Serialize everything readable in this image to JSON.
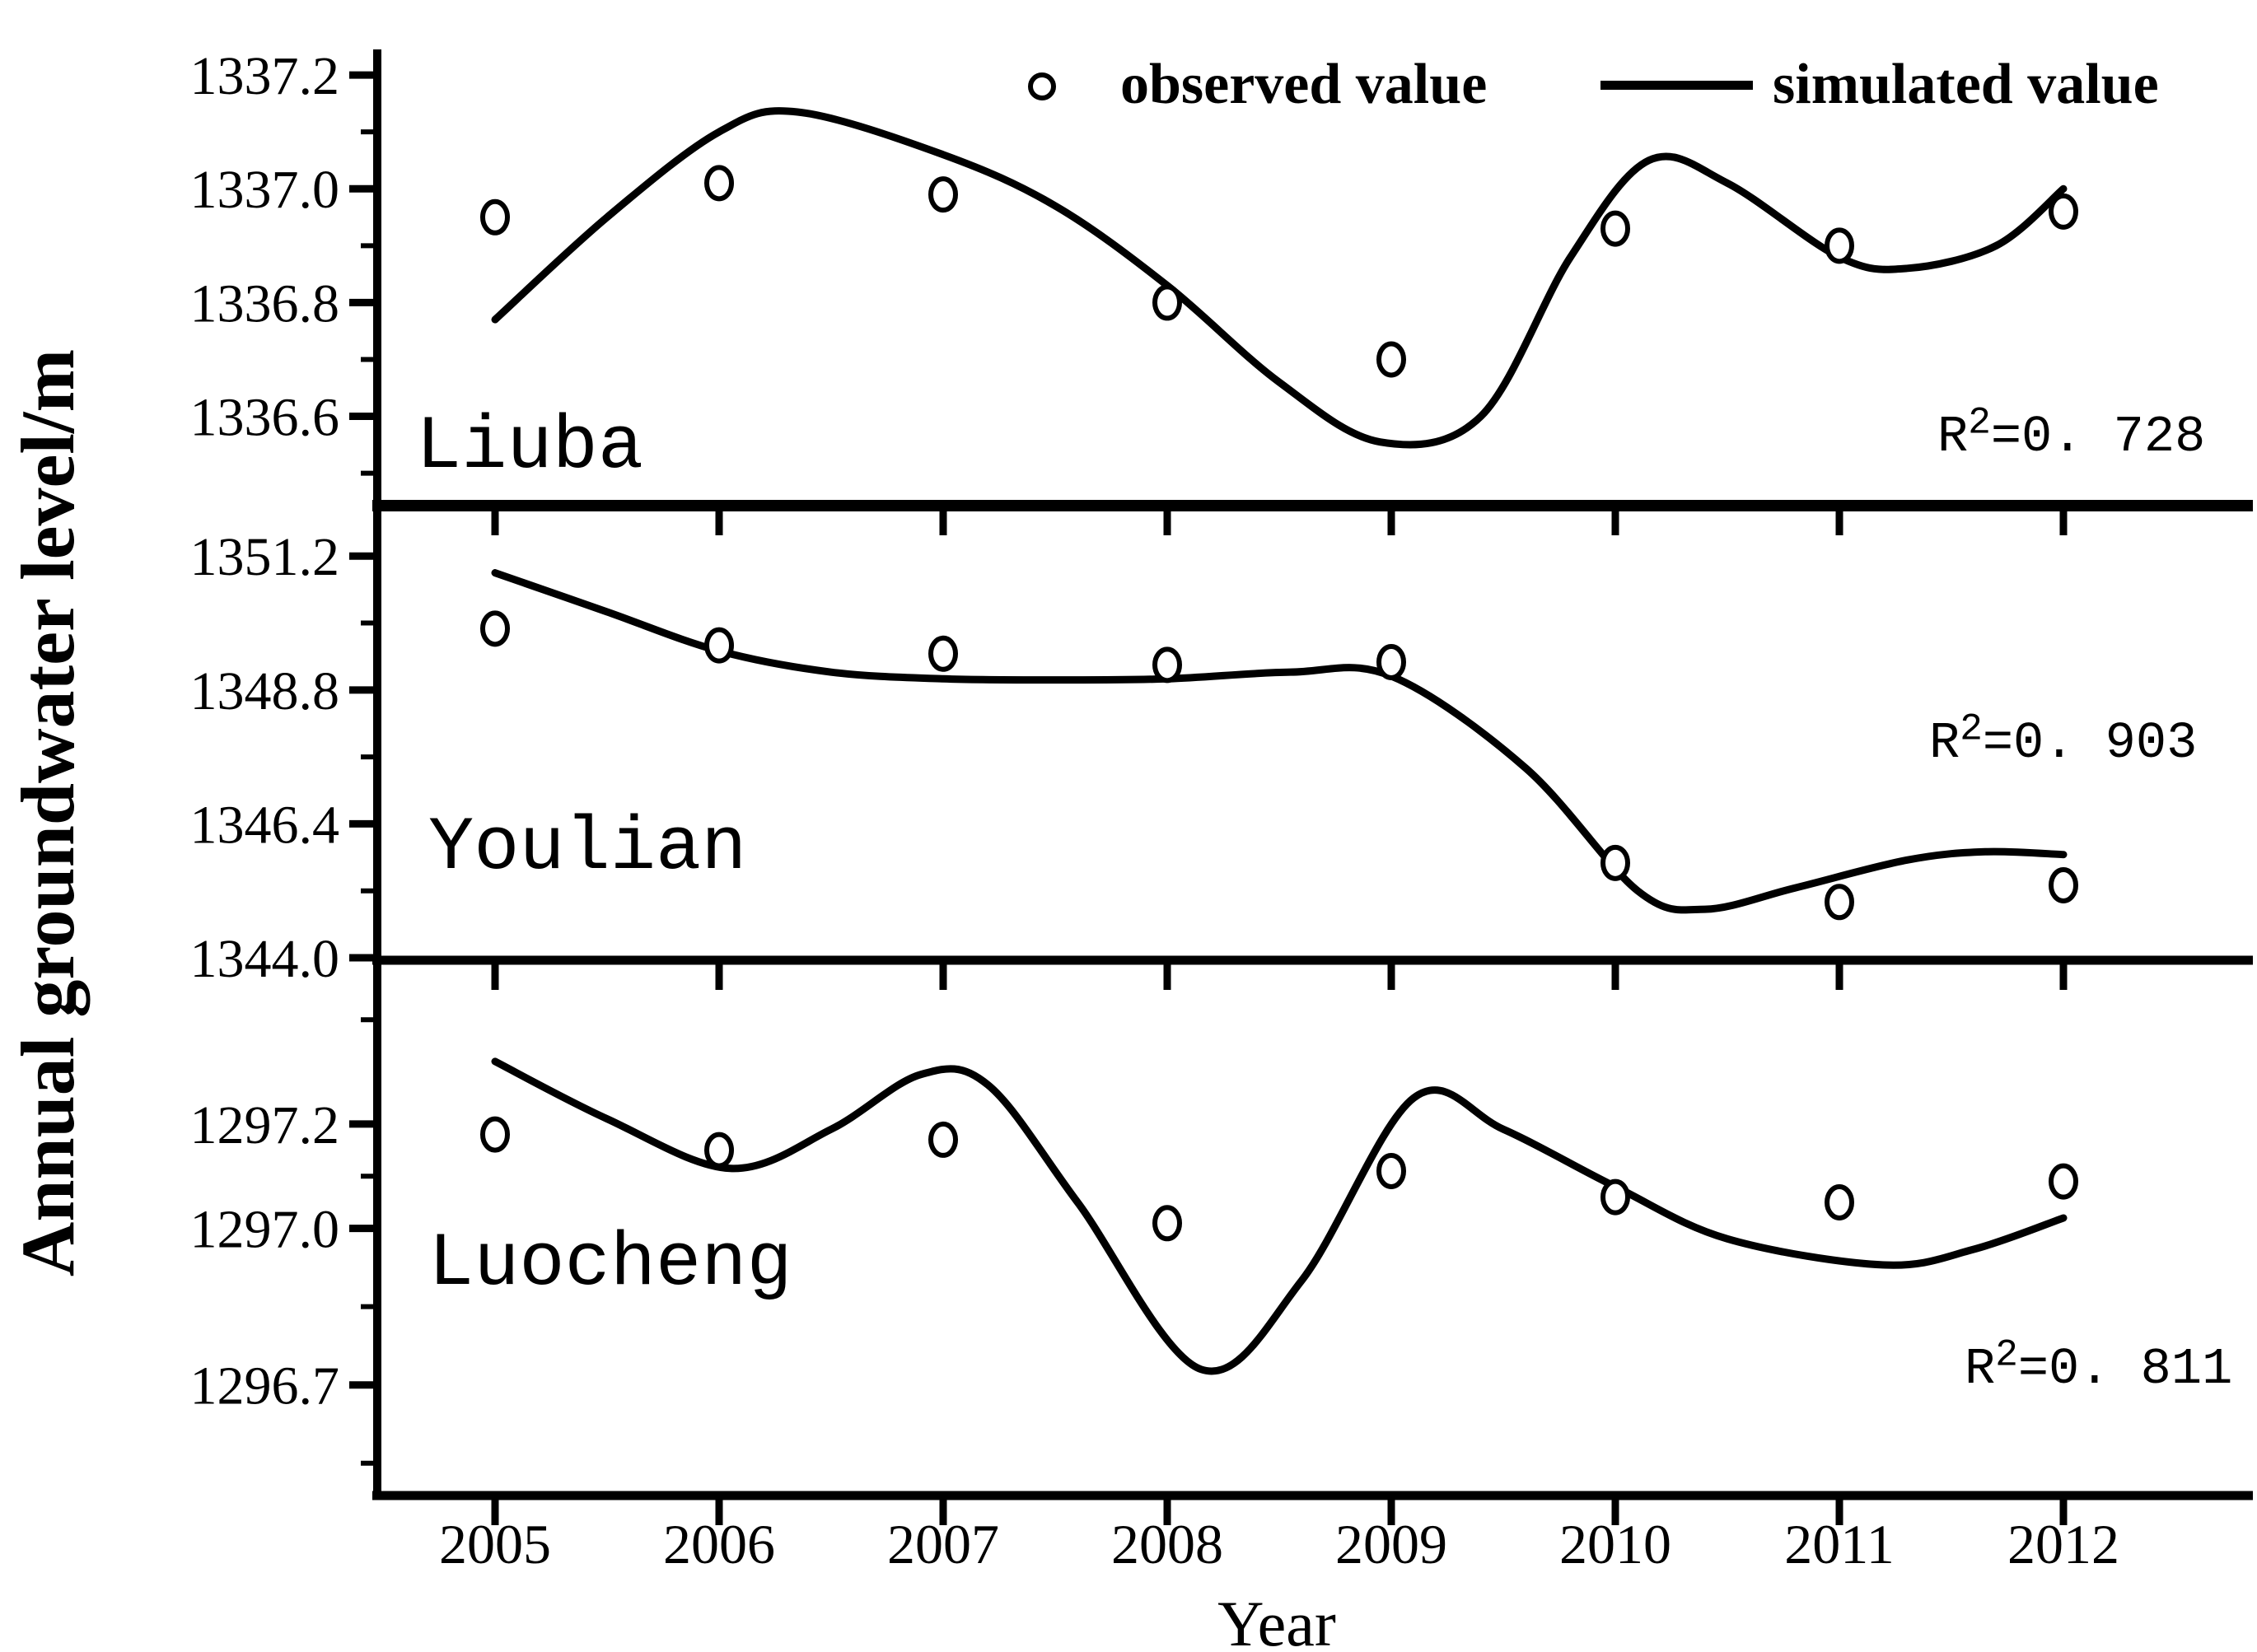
{
  "chart_data": {
    "type": "line",
    "title": "",
    "xlabel": "Year",
    "ylabel": "Annual groundwater level/m",
    "x_years": [
      2005,
      2006,
      2007,
      2008,
      2009,
      2010,
      2011,
      2012
    ],
    "legend": [
      {
        "label": "observed value",
        "marker": "circle"
      },
      {
        "label": "simulated value",
        "marker": "line"
      }
    ],
    "grid": false,
    "legend_position": "top",
    "panels": [
      {
        "name": "Liuba",
        "r2_base": "R",
        "r2_sup": "2",
        "r2_rest": "=0. 728",
        "ylim": [
          1336.443,
          1337.245
        ],
        "ytick_labels": [
          "1337.2",
          "1337.0",
          "1336.8",
          "1336.6"
        ],
        "yticks_major": [
          1337.2,
          1337.0,
          1336.8,
          1336.6
        ],
        "yticks_minor": [
          1337.1,
          1336.9,
          1336.7,
          1336.5
        ],
        "observed": [
          1336.95,
          1337.01,
          1336.99,
          1336.8,
          1336.7,
          1336.93,
          1336.9,
          1336.96
        ],
        "simulated_curve": [
          [
            2005,
            1336.77
          ],
          [
            2005.5,
            1336.95
          ],
          [
            2006,
            1337.1
          ],
          [
            2006.35,
            1337.135
          ],
          [
            2007,
            1337.06
          ],
          [
            2007.5,
            1336.97
          ],
          [
            2008,
            1336.83
          ],
          [
            2008.5,
            1336.66
          ],
          [
            2008.95,
            1336.555
          ],
          [
            2009.4,
            1336.6
          ],
          [
            2009.8,
            1336.88
          ],
          [
            2010.15,
            1337.05
          ],
          [
            2010.5,
            1337.01
          ],
          [
            2011,
            1336.88
          ],
          [
            2011.3,
            1336.86
          ],
          [
            2011.7,
            1336.9
          ],
          [
            2012,
            1337.0
          ]
        ]
      },
      {
        "name": "Youlian",
        "r2_base": "R",
        "r2_sup": "2",
        "r2_rest": "=0. 903",
        "ylim": [
          1343.956,
          1352.104
        ],
        "ytick_labels": [
          "1351.2",
          "1348.8",
          "1346.4",
          "1344.0"
        ],
        "yticks_major": [
          1351.2,
          1348.8,
          1346.4,
          1344.0
        ],
        "yticks_minor": [
          1350.0,
          1347.6,
          1345.2
        ],
        "observed": [
          1349.9,
          1349.6,
          1349.45,
          1349.25,
          1349.3,
          1345.7,
          1345.0,
          1345.3
        ],
        "simulated_curve": [
          [
            2005,
            1350.9
          ],
          [
            2005.5,
            1350.2
          ],
          [
            2006,
            1349.5
          ],
          [
            2006.5,
            1349.12
          ],
          [
            2007,
            1349.0
          ],
          [
            2007.5,
            1348.98
          ],
          [
            2008,
            1349.0
          ],
          [
            2008.55,
            1349.12
          ],
          [
            2009,
            1349.05
          ],
          [
            2009.6,
            1347.4
          ],
          [
            2010.1,
            1345.2
          ],
          [
            2010.4,
            1344.87
          ],
          [
            2010.8,
            1345.25
          ],
          [
            2011.3,
            1345.75
          ],
          [
            2011.65,
            1345.9
          ],
          [
            2012,
            1345.85
          ]
        ]
      },
      {
        "name": "Luocheng",
        "r2_base": "R",
        "r2_sup": "2",
        "r2_rest": "=0. 811",
        "ylim": [
          1296.488,
          1297.514
        ],
        "ytick_labels": [
          "1297.2",
          "1297.0",
          "1296.7"
        ],
        "yticks_major": [
          1297.2,
          1297.0,
          1296.7
        ],
        "yticks_minor": [
          1297.4,
          1297.1,
          1296.85,
          1296.55
        ],
        "observed": [
          1297.18,
          1297.15,
          1297.17,
          1297.01,
          1297.11,
          1297.06,
          1297.05,
          1297.09
        ],
        "simulated_curve": [
          [
            2005,
            1297.32
          ],
          [
            2005.5,
            1297.21
          ],
          [
            2006.05,
            1297.115
          ],
          [
            2006.5,
            1297.19
          ],
          [
            2006.9,
            1297.295
          ],
          [
            2007.2,
            1297.275
          ],
          [
            2007.6,
            1297.05
          ],
          [
            2008.15,
            1296.73
          ],
          [
            2008.6,
            1296.9
          ],
          [
            2009.1,
            1297.25
          ],
          [
            2009.5,
            1297.19
          ],
          [
            2010,
            1297.08
          ],
          [
            2010.5,
            1296.98
          ],
          [
            2011.2,
            1296.93
          ],
          [
            2011.6,
            1296.96
          ],
          [
            2012,
            1297.02
          ]
        ]
      }
    ]
  }
}
